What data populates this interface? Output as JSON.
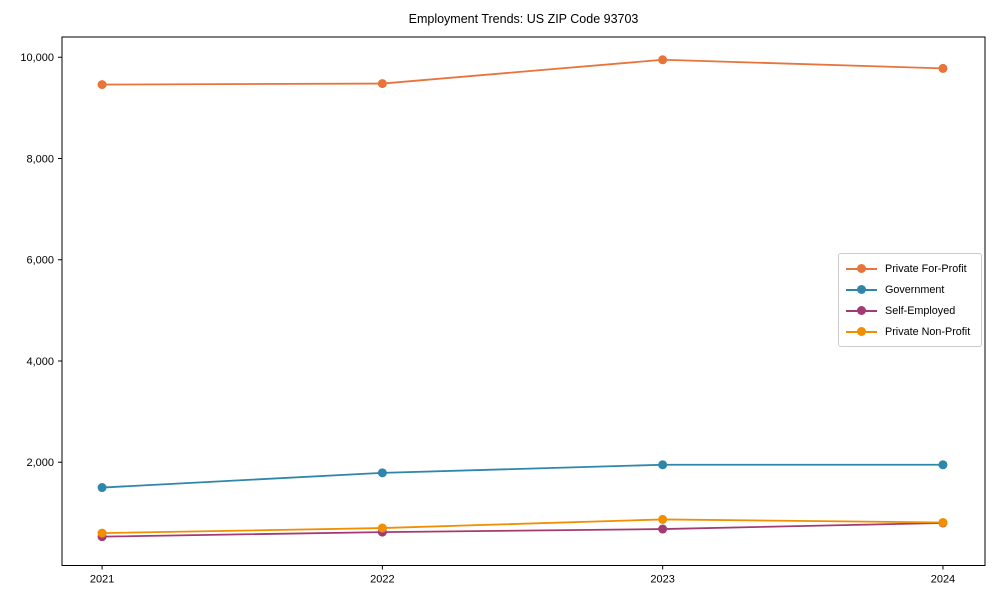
{
  "chart_data": {
    "type": "line",
    "title": "Employment Trends: US ZIP Code 93703",
    "xlabel": "",
    "ylabel": "",
    "x": [
      2021,
      2022,
      2023,
      2024
    ],
    "x_tick_labels": [
      "2021",
      "2022",
      "2023",
      "2024"
    ],
    "series": [
      {
        "name": "Private For-Profit",
        "color": "#E8743B",
        "values": [
          9460,
          9480,
          9950,
          9780
        ]
      },
      {
        "name": "Government",
        "color": "#2E86AB",
        "values": [
          1500,
          1790,
          1950,
          1950
        ]
      },
      {
        "name": "Self-Employed",
        "color": "#A23B72",
        "values": [
          530,
          620,
          680,
          800
        ]
      },
      {
        "name": "Private Non-Profit",
        "color": "#F18F01",
        "values": [
          600,
          700,
          870,
          810
        ]
      }
    ],
    "yticks": [
      {
        "value": 2000,
        "label": "2,000"
      },
      {
        "value": 4000,
        "label": "4,000"
      },
      {
        "value": 6000,
        "label": "6,000"
      },
      {
        "value": 8000,
        "label": "8,000"
      },
      {
        "value": 10000,
        "label": "10,000"
      }
    ],
    "xlim": [
      2020.857,
      2024.15
    ],
    "ylim": [
      -40,
      10400
    ],
    "grid": false,
    "legend_position": "right-middle",
    "axis_color": "#000000",
    "marker": "circle",
    "marker_radius": 4.5,
    "line_width": 1.8
  }
}
